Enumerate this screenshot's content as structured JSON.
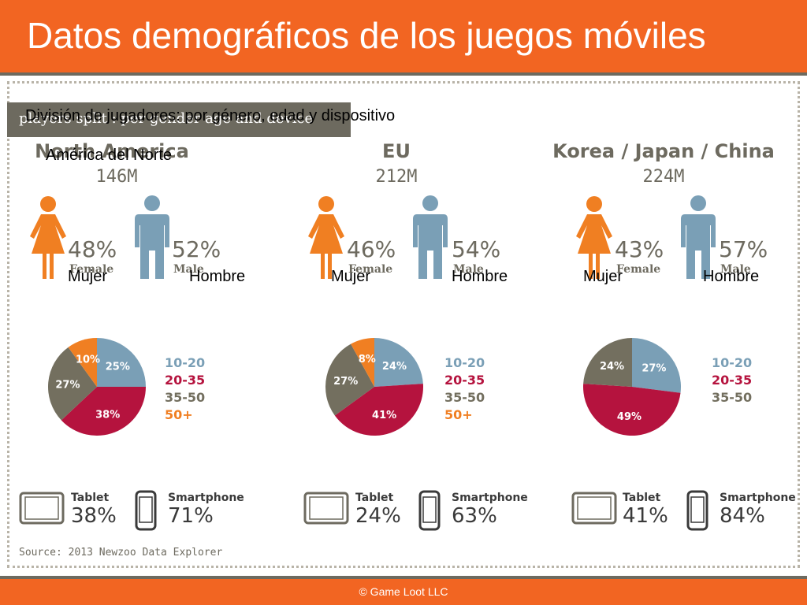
{
  "title": "Datos demográficos de los juegos móviles",
  "subtitle_original": "players split : per gender age and device",
  "subtitle_overlay": "División de jugadores: por género, edad y dispositivo",
  "colors": {
    "accent": "#f26522",
    "gray": "#6d6a5f",
    "female": "#f07f22",
    "male": "#7a9fb6",
    "age_10_20": "#7a9fb6",
    "age_20_35": "#b5133e",
    "age_35_50": "#736f5f",
    "age_50_plus": "#f07f22"
  },
  "labels": {
    "female": "Female",
    "male": "Male",
    "female_es": "Mujer",
    "male_es": "Hombre",
    "tablet": "Tablet",
    "smartphone": "Smartphone"
  },
  "regions": [
    {
      "name": "North America",
      "name_es": "América del Norte",
      "players": "146M",
      "female_pct": "48%",
      "male_pct": "52%",
      "tablet_pct": "38%",
      "smartphone_pct": "71%"
    },
    {
      "name": "EU",
      "name_es": "",
      "players": "212M",
      "female_pct": "46%",
      "male_pct": "54%",
      "tablet_pct": "24%",
      "smartphone_pct": "63%"
    },
    {
      "name": "Korea / Japan / China",
      "name_es": "",
      "players": "224M",
      "female_pct": "43%",
      "male_pct": "57%",
      "tablet_pct": "41%",
      "smartphone_pct": "84%"
    }
  ],
  "chart_data": [
    {
      "type": "pie",
      "region": "North America",
      "categories": [
        "10-20",
        "20-35",
        "35-50",
        "50+"
      ],
      "values": [
        25,
        38,
        27,
        10
      ],
      "value_labels": [
        "25%",
        "38%",
        "27%",
        "10%"
      ]
    },
    {
      "type": "pie",
      "region": "EU",
      "categories": [
        "10-20",
        "20-35",
        "35-50",
        "50+"
      ],
      "values": [
        24,
        41,
        27,
        8
      ],
      "value_labels": [
        "24%",
        "41%",
        "27%",
        "8%"
      ]
    },
    {
      "type": "pie",
      "region": "Korea / Japan / China",
      "categories": [
        "10-20",
        "20-35",
        "35-50"
      ],
      "values": [
        27,
        49,
        24
      ],
      "value_labels": [
        "27%",
        "49%",
        "24%"
      ]
    }
  ],
  "source": "Source: 2013 Newzoo Data Explorer",
  "footer": "© Game Loot LLC"
}
